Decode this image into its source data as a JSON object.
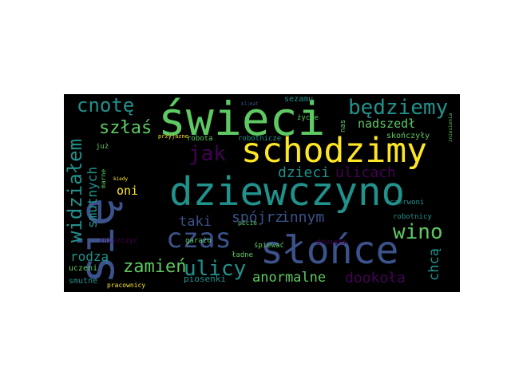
{
  "wordcloud": {
    "background": "#000000",
    "palette": [
      "#fde725",
      "#5ec962",
      "#21918c",
      "#3b528b",
      "#440154"
    ],
    "words": {
      "sie": "się",
      "swieci": "świeci",
      "schodzimy": "schodzimy",
      "dziewczyno": "dziewczyno",
      "slonce": "słońce",
      "czas": "czas",
      "bedziemy": "będziemy",
      "cnote": "cnotę",
      "szlas": "szłaś",
      "jak": "jak",
      "nadszedl": "nadszedł",
      "widzialem": "widziałem",
      "smutnych": "smutnych",
      "dzieci": "dzieci",
      "ulicach": "ulicach",
      "oni": "oni",
      "taki": "taki",
      "spojrz": "spójrz",
      "innym": "innym",
      "wino": "wino",
      "rodza": "rodzą",
      "zamien": "zamień",
      "ulicy": "ulicy",
      "anormalne": "anormalne",
      "dookola": "dookoła",
      "chca": "chcą",
      "piosenki": "piosenki",
      "smutne": "smutne",
      "uczeni": "uczeni",
      "skonczyly": "skończyły",
      "sezamu": "sezamu",
      "zycie": "życie",
      "nas": "nas",
      "juz": "już",
      "robota": "robota",
      "robotnicze": "robotnicze",
      "garazu": "garażu",
      "spiewac": "śpiewać",
      "dzwieki": "dźwięki",
      "ladne": "ładne",
      "czerwoni": "czerwoni",
      "robotnicy": "robotnicy",
      "zniszczyc": "zniszczyć",
      "marne": "marne",
      "pracownicy": "pracownicy",
      "przyjazne": "przyjazne",
      "picie": "picie",
      "kiedy": "kiedy",
      "klimat": "klimat",
      "zniesienia": "zniesienia"
    }
  }
}
